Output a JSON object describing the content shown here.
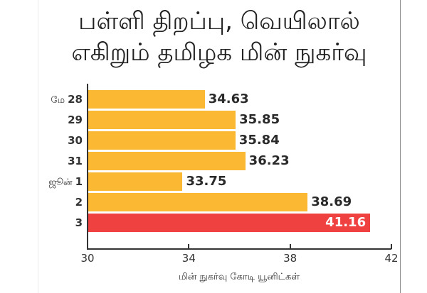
{
  "title": {
    "line1": "பள்ளி திறப்பு, வெயிலால்",
    "line2": "எகிறும் தமிழக மின் நுகர்வு"
  },
  "colors": {
    "bar": "#fbb832",
    "highlight": "#f04141",
    "text": "#2a2a2a"
  },
  "chart_data": {
    "type": "bar",
    "orientation": "horizontal",
    "title": "பள்ளி திறப்பு, வெயிலால் எகிறும் தமிழக மின் நுகர்வு",
    "xlabel": "மின் நுகர்வு கோடி யூனிட்கள்",
    "ylabel": "",
    "categories": [
      "மே 28",
      "29",
      "30",
      "31",
      "ஜூன் 1",
      "2",
      "3"
    ],
    "values": [
      34.63,
      35.85,
      35.84,
      36.23,
      33.75,
      38.69,
      41.16
    ],
    "highlighted_index": 6,
    "xlim": [
      30,
      42
    ],
    "xticks": [
      30,
      34,
      38,
      42
    ],
    "grid": false,
    "legend": null
  },
  "rows": [
    {
      "month": "மே",
      "day": "28",
      "value": "34.63"
    },
    {
      "month": "",
      "day": "29",
      "value": "35.85"
    },
    {
      "month": "",
      "day": "30",
      "value": "35.84"
    },
    {
      "month": "",
      "day": "31",
      "value": "36.23"
    },
    {
      "month": "ஜூன்",
      "day": "1",
      "value": "33.75"
    },
    {
      "month": "",
      "day": "2",
      "value": "38.69"
    },
    {
      "month": "",
      "day": "3",
      "value": "41.16"
    }
  ],
  "axis": {
    "ticks": [
      "30",
      "34",
      "38",
      "42"
    ],
    "xlabel": "மின் நுகர்வு கோடி யூனிட்கள்"
  }
}
